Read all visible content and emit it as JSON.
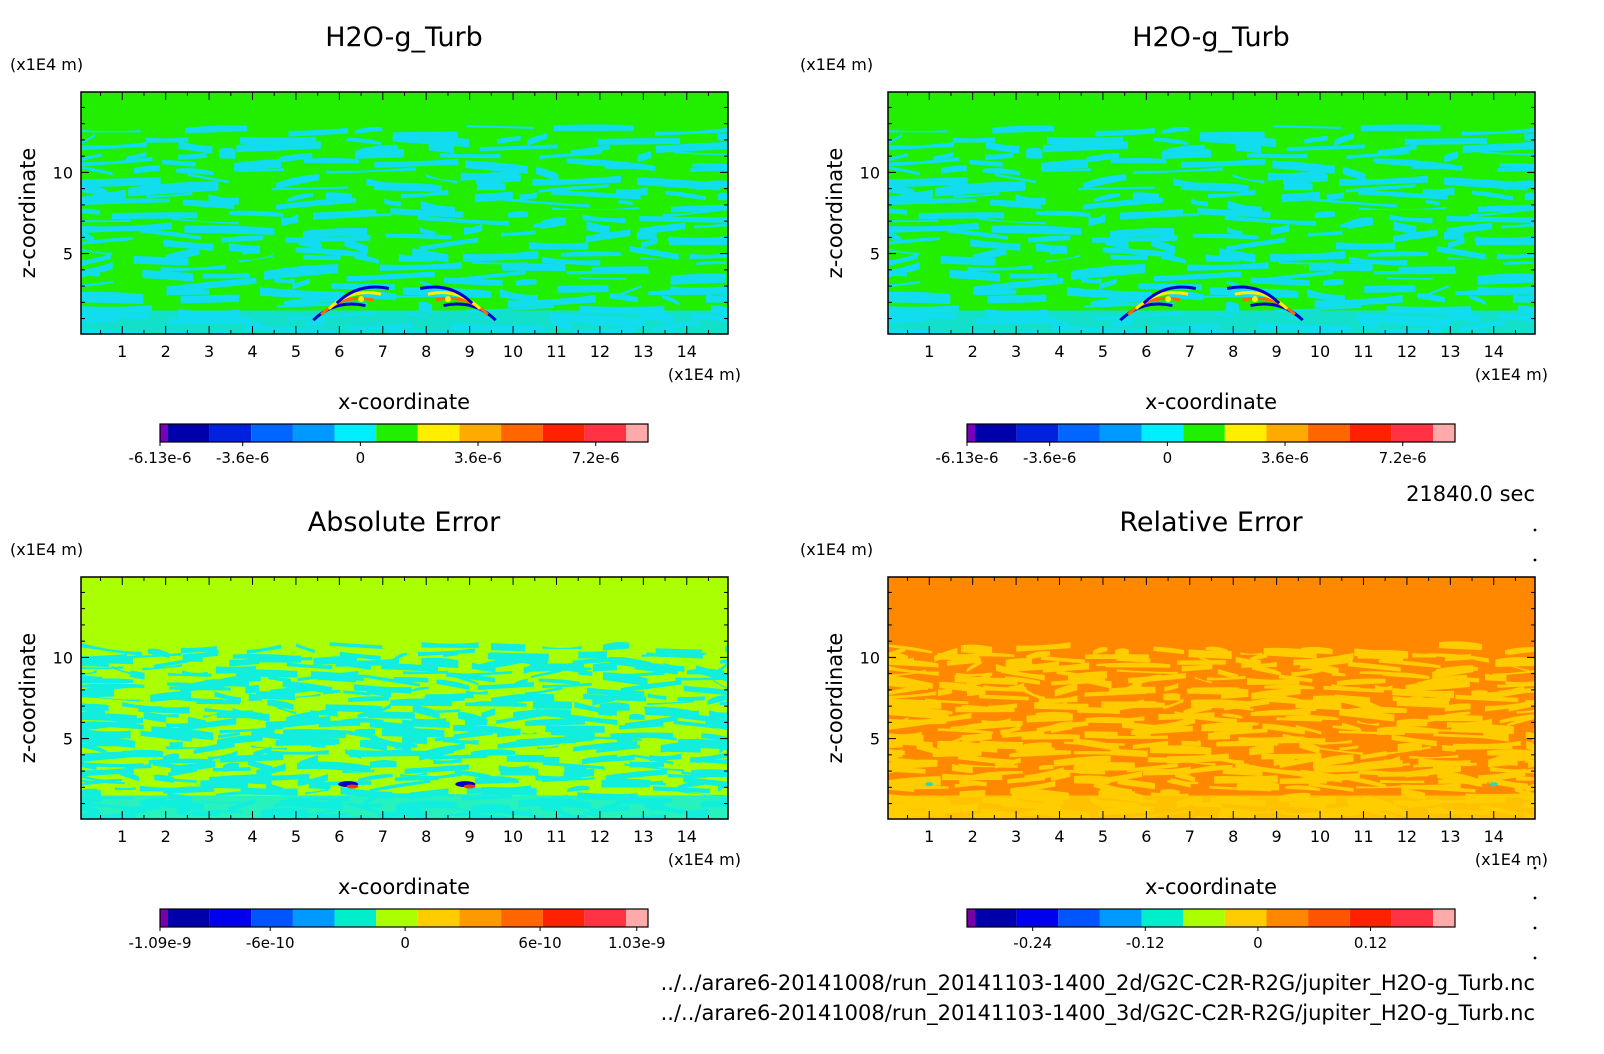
{
  "time_label": "21840.0 sec",
  "files": [
    "../../arare6-20141008/run_20141103-1400_2d/G2C-C2R-R2G/jupiter_H2O-g_Turb.nc",
    "../../arare6-20141008/run_20141103-1400_3d/G2C-C2R-R2G/jupiter_H2O-g_Turb.nc"
  ],
  "chart_data": [
    {
      "type": "heatmap",
      "title": "H2O-g_Turb",
      "xlabel": "x-coordinate",
      "ylabel": "z-coordinate",
      "x_unit": "(x1E4 m)",
      "y_unit": "(x1E4 m)",
      "xlim": [
        0.05,
        14.95
      ],
      "ylim": [
        0.05,
        14.95
      ],
      "xticks": [
        "1",
        "2",
        "3",
        "4",
        "5",
        "6",
        "7",
        "8",
        "9",
        "10",
        "11",
        "12",
        "13",
        "14"
      ],
      "yticks": [
        "5",
        "10"
      ],
      "background_color": "#22ee00",
      "pattern_color": "#11ddee",
      "feature_colors": [
        "#0000cc",
        "#ff6600",
        "#ffee00"
      ],
      "colorbar": {
        "colors": [
          "#7700bb",
          "#0000aa",
          "#0022dd",
          "#0066ff",
          "#0099ff",
          "#00eeff",
          "#22ee00",
          "#ffee00",
          "#ffaa00",
          "#ff6600",
          "#ff2200",
          "#ff3344",
          "#ffaaaa"
        ],
        "labels": [
          {
            "text": "-6.13e-6",
            "value": -6.13e-06
          },
          {
            "text": "-3.6e-6",
            "value": -3.6e-06
          },
          {
            "text": "0",
            "value": 0
          },
          {
            "text": "3.6e-6",
            "value": 3.6e-06
          },
          {
            "text": "7.2e-6",
            "value": 7.2e-06
          }
        ],
        "min": -6.13e-06,
        "max": 8.8e-06
      }
    },
    {
      "type": "heatmap",
      "title": "H2O-g_Turb",
      "xlabel": "x-coordinate",
      "ylabel": "z-coordinate",
      "x_unit": "(x1E4 m)",
      "y_unit": "(x1E4 m)",
      "xlim": [
        0.05,
        14.95
      ],
      "ylim": [
        0.05,
        14.95
      ],
      "xticks": [
        "1",
        "2",
        "3",
        "4",
        "5",
        "6",
        "7",
        "8",
        "9",
        "10",
        "11",
        "12",
        "13",
        "14"
      ],
      "yticks": [
        "5",
        "10"
      ],
      "background_color": "#22ee00",
      "pattern_color": "#11ddee",
      "feature_colors": [
        "#0000cc",
        "#ff6600",
        "#ffee00"
      ],
      "colorbar": {
        "colors": [
          "#7700bb",
          "#0000aa",
          "#0022dd",
          "#0066ff",
          "#0099ff",
          "#00eeff",
          "#22ee00",
          "#ffee00",
          "#ffaa00",
          "#ff6600",
          "#ff2200",
          "#ff3344",
          "#ffaaaa"
        ],
        "labels": [
          {
            "text": "-6.13e-6",
            "value": -6.13e-06
          },
          {
            "text": "-3.6e-6",
            "value": -3.6e-06
          },
          {
            "text": "0",
            "value": 0
          },
          {
            "text": "3.6e-6",
            "value": 3.6e-06
          },
          {
            "text": "7.2e-6",
            "value": 7.2e-06
          }
        ],
        "min": -6.13e-06,
        "max": 8.8e-06
      }
    },
    {
      "type": "heatmap",
      "title": "Absolute Error",
      "xlabel": "x-coordinate",
      "ylabel": "z-coordinate",
      "x_unit": "(x1E4 m)",
      "y_unit": "(x1E4 m)",
      "xlim": [
        0.05,
        14.95
      ],
      "ylim": [
        0.05,
        14.95
      ],
      "xticks": [
        "1",
        "2",
        "3",
        "4",
        "5",
        "6",
        "7",
        "8",
        "9",
        "10",
        "11",
        "12",
        "13",
        "14"
      ],
      "yticks": [
        "5",
        "10"
      ],
      "background_color": "#aaff00",
      "pattern_color": "#11eedd",
      "feature_colors": [
        "#0000cc",
        "#ff3300",
        "#ffee00"
      ],
      "colorbar": {
        "colors": [
          "#7700aa",
          "#0000aa",
          "#0000ee",
          "#0055ff",
          "#0099ff",
          "#00eecc",
          "#aaff00",
          "#ffcc00",
          "#ff9900",
          "#ff6600",
          "#ff2200",
          "#ff3344",
          "#ffaaaa"
        ],
        "labels": [
          {
            "text": "-1.09e-9",
            "value": -1.09e-09
          },
          {
            "text": "-6e-10",
            "value": -6e-10
          },
          {
            "text": "0",
            "value": 0
          },
          {
            "text": "6e-10",
            "value": 6e-10
          },
          {
            "text": "1.03e-9",
            "value": 1.03e-09
          }
        ],
        "min": -1.09e-09,
        "max": 1.08e-09
      }
    },
    {
      "type": "heatmap",
      "title": "Relative Error",
      "xlabel": "x-coordinate",
      "ylabel": "z-coordinate",
      "x_unit": "(x1E4 m)",
      "y_unit": "(x1E4 m)",
      "xlim": [
        0.05,
        14.95
      ],
      "ylim": [
        0.05,
        14.95
      ],
      "xticks": [
        "1",
        "2",
        "3",
        "4",
        "5",
        "6",
        "7",
        "8",
        "9",
        "10",
        "11",
        "12",
        "13",
        "14"
      ],
      "yticks": [
        "5",
        "10"
      ],
      "background_color": "#ff8800",
      "pattern_color": "#ffcc00",
      "feature_colors": [
        "#22ddbb",
        "#ff6600",
        "#ffcc00"
      ],
      "colorbar": {
        "colors": [
          "#7700aa",
          "#0000aa",
          "#0000ee",
          "#0055ff",
          "#0099ff",
          "#00eecc",
          "#aaff00",
          "#ffcc00",
          "#ff8800",
          "#ff5500",
          "#ff2200",
          "#ff3344",
          "#ffaaaa"
        ],
        "labels": [
          {
            "text": "-0.24",
            "value": -0.24
          },
          {
            "text": "-0.12",
            "value": -0.12
          },
          {
            "text": "0",
            "value": 0
          },
          {
            "text": "0.12",
            "value": 0.12
          }
        ],
        "min": -0.31,
        "max": 0.21
      }
    }
  ]
}
